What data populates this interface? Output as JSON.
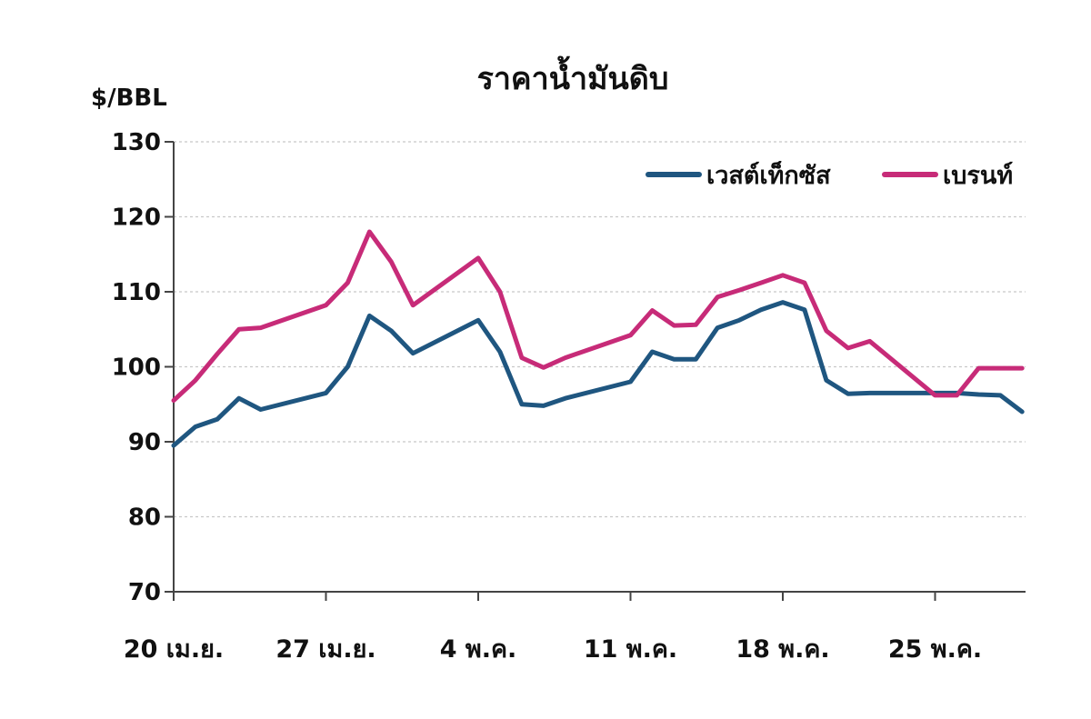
{
  "chart_data": {
    "type": "line",
    "title": "ราคาน้ำมันดิบ",
    "ylabel": "$/BBL",
    "xlabel": "",
    "ylim": [
      70,
      130
    ],
    "yticks": [
      70,
      80,
      90,
      100,
      110,
      120,
      130
    ],
    "x_tick_labels": [
      "20 เม.ย.",
      "27 เม.ย.",
      "4 พ.ค.",
      "11 พ.ค.",
      "18 พ.ค.",
      "25 พ.ค."
    ],
    "x_day_range": [
      0,
      40
    ],
    "grid": true,
    "legend_position": "top-right",
    "series": [
      {
        "name": "เวสต์เท็กซัส",
        "color": "#1f5680",
        "x": [
          0,
          1,
          2,
          3,
          4,
          7,
          8,
          9,
          10,
          11,
          14,
          15,
          16,
          17,
          18,
          21,
          22,
          23,
          24,
          25,
          26,
          27,
          28,
          29,
          30,
          31,
          32,
          35,
          36,
          37,
          38,
          39
        ],
        "values": [
          89.5,
          92,
          93,
          95.8,
          94.3,
          96.5,
          100,
          106.8,
          104.8,
          101.8,
          106.2,
          102,
          95,
          94.8,
          95.8,
          98,
          102,
          101,
          101,
          105.2,
          106.2,
          107.6,
          108.6,
          107.6,
          98.2,
          96.4,
          96.5,
          96.5,
          96.5,
          96.3,
          96.2,
          94
        ]
      },
      {
        "name": "เบรนท์",
        "color": "#c72b78",
        "x": [
          0,
          1,
          2,
          3,
          4,
          7,
          8,
          9,
          10,
          11,
          14,
          15,
          16,
          17,
          18,
          21,
          22,
          23,
          24,
          25,
          26,
          27,
          28,
          29,
          30,
          31,
          32,
          35,
          36,
          37,
          38,
          39
        ],
        "values": [
          95.5,
          98.2,
          101.7,
          105,
          105.2,
          108.2,
          111.2,
          118,
          114,
          108.2,
          114.5,
          110,
          101.2,
          99.9,
          101.2,
          104.2,
          107.5,
          105.5,
          105.6,
          109.3,
          110.2,
          111.2,
          112.2,
          111.2,
          104.8,
          102.5,
          103.4,
          96.2,
          96.2,
          99.8,
          99.8,
          99.8
        ]
      }
    ]
  }
}
